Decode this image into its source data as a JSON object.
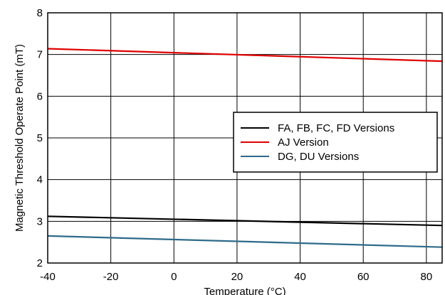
{
  "chart_data": {
    "type": "line",
    "xlabel": "Temperature (°C)",
    "ylabel": "Magnetic Threshold Operate Point (mT)",
    "xlim": [
      -40,
      85
    ],
    "ylim": [
      2,
      8
    ],
    "xticks": [
      -40,
      -20,
      0,
      20,
      40,
      60,
      80
    ],
    "yticks": [
      2,
      3,
      4,
      5,
      6,
      7,
      8
    ],
    "grid": true,
    "legend_position": "center-right",
    "series": [
      {
        "name": "FA, FB, FC, FD Versions",
        "color": "#000000",
        "x": [
          -40,
          85
        ],
        "y": [
          3.12,
          2.9
        ]
      },
      {
        "name": "AJ Version",
        "color": "#e00000",
        "x": [
          -40,
          85
        ],
        "y": [
          7.14,
          6.84
        ]
      },
      {
        "name": "DG, DU Versions",
        "color": "#2e6a8a",
        "x": [
          -40,
          85
        ],
        "y": [
          2.65,
          2.38
        ]
      }
    ]
  }
}
